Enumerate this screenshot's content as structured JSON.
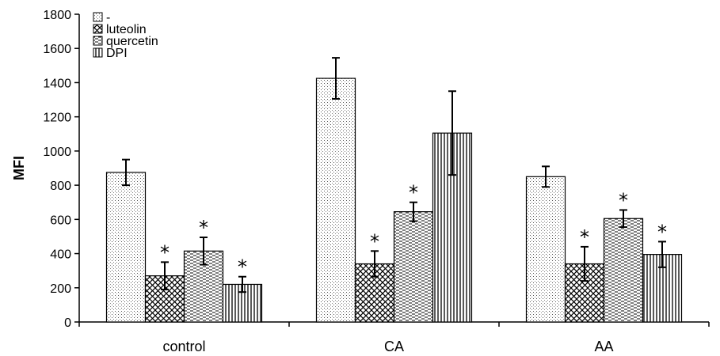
{
  "chart_data": {
    "type": "bar",
    "ylabel": "MFI",
    "xlabel": "",
    "ylim": [
      0,
      1800
    ],
    "yticks": [
      0,
      200,
      400,
      600,
      800,
      1000,
      1200,
      1400,
      1600,
      1800
    ],
    "categories": [
      "control",
      "CA",
      "AA"
    ],
    "legend_position": "top-left",
    "grid": false,
    "significance_marker": "*",
    "series": [
      {
        "name": "-",
        "pattern": "dots",
        "values": [
          875,
          1425,
          850
        ],
        "errors": [
          75,
          120,
          60
        ],
        "significant": [
          false,
          false,
          false
        ]
      },
      {
        "name": "luteolin",
        "pattern": "crosshatch",
        "values": [
          270,
          340,
          340
        ],
        "errors": [
          80,
          75,
          100
        ],
        "significant": [
          true,
          true,
          true
        ]
      },
      {
        "name": "quercetin",
        "pattern": "dashes",
        "values": [
          415,
          645,
          605
        ],
        "errors": [
          80,
          55,
          50
        ],
        "significant": [
          true,
          true,
          true
        ]
      },
      {
        "name": "DPI",
        "pattern": "vertical",
        "values": [
          220,
          1105,
          395
        ],
        "errors": [
          45,
          245,
          75
        ],
        "significant": [
          true,
          false,
          true
        ]
      }
    ]
  }
}
